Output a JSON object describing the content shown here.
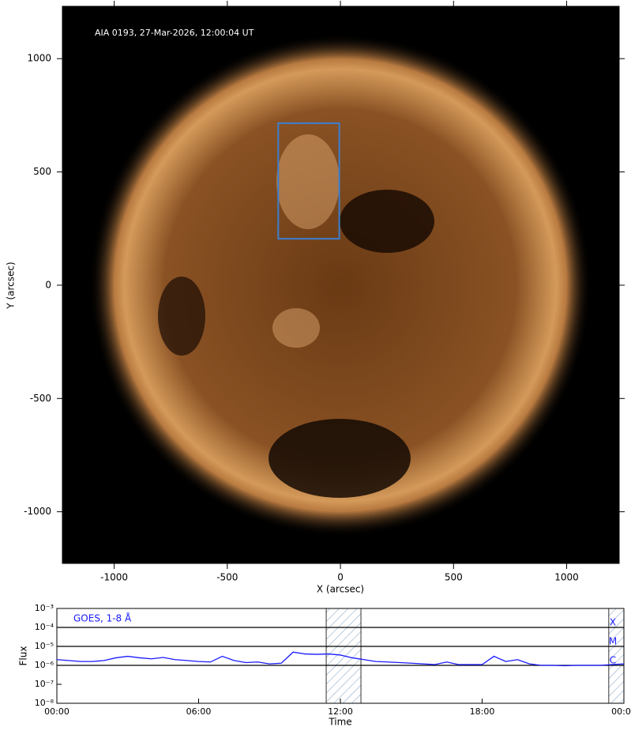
{
  "chart_data": [
    {
      "type": "image",
      "title": "AIA 0193, 27-Mar-2026, 12:00:04 UT",
      "xlabel": "X (arcsec)",
      "ylabel": "Y (arcsec)",
      "xlim": [
        -1229,
        1232
      ],
      "ylim": [
        -1228,
        1231
      ],
      "xticks": [
        -1000,
        -500,
        0,
        500,
        1000
      ],
      "yticks": [
        -1000,
        -500,
        0,
        500,
        1000
      ],
      "box": {
        "x": [
          -275,
          -5
        ],
        "y": [
          205,
          715
        ],
        "color": "#3a7fd0"
      }
    },
    {
      "type": "line",
      "title": "GOES, 1-8 Å",
      "xlabel": "Time",
      "ylabel": "Flux",
      "log_scale": true,
      "xlim": [
        0,
        24
      ],
      "ylim": [
        1e-08,
        0.001
      ],
      "xticks": [
        {
          "value": 0,
          "label": "00:00"
        },
        {
          "value": 6,
          "label": "06:00"
        },
        {
          "value": 12,
          "label": "12:00"
        },
        {
          "value": 18,
          "label": "18:00"
        },
        {
          "value": 24,
          "label": "00:00"
        }
      ],
      "yticks": [
        {
          "value": 1e-08,
          "label": "10⁻⁸"
        },
        {
          "value": 1e-07,
          "label": "10⁻⁷"
        },
        {
          "value": 1e-06,
          "label": "10⁻⁶"
        },
        {
          "value": 1e-05,
          "label": "10⁻⁵"
        },
        {
          "value": 0.0001,
          "label": "10⁻⁴"
        },
        {
          "value": 0.001,
          "label": "10⁻³"
        }
      ],
      "levels": [
        {
          "value": 0.0001,
          "label": "X"
        },
        {
          "value": 1e-05,
          "label": "M"
        },
        {
          "value": 1e-06,
          "label": "C"
        }
      ],
      "shaded": [
        [
          11.4,
          12.87
        ],
        [
          23.36,
          24
        ]
      ],
      "color": "#1a1aff",
      "x": [
        0,
        0.5,
        1,
        1.5,
        2,
        2.5,
        3,
        3.5,
        4,
        4.5,
        5,
        5.5,
        6,
        6.5,
        7,
        7.5,
        8,
        8.5,
        9,
        9.5,
        10,
        10.5,
        11,
        11.5,
        12,
        12.5,
        13,
        13.5,
        14,
        14.5,
        15,
        15.5,
        16,
        16.5,
        17,
        17.5,
        18,
        18.5,
        19,
        19.5,
        20,
        20.5,
        21,
        21.5,
        22,
        22.5,
        23,
        23.5,
        24
      ],
      "values": [
        2e-06,
        1.8e-06,
        1.6e-06,
        1.6e-06,
        1.8e-06,
        2.5e-06,
        3e-06,
        2.5e-06,
        2.2e-06,
        2.6e-06,
        2e-06,
        1.8e-06,
        1.6e-06,
        1.5e-06,
        3e-06,
        1.8e-06,
        1.4e-06,
        1.5e-06,
        1.2e-06,
        1.3e-06,
        5e-06,
        4e-06,
        3.8e-06,
        4e-06,
        3.5e-06,
        2.5e-06,
        2e-06,
        1.6e-06,
        1.5e-06,
        1.4e-06,
        1.3e-06,
        1.2e-06,
        1.1e-06,
        1.5e-06,
        1.1e-06,
        1.1e-06,
        1.1e-06,
        3e-06,
        1.6e-06,
        2e-06,
        1.2e-06,
        1e-06,
        1e-06,
        9.5e-07,
        1e-06,
        1e-06,
        1e-06,
        1.1e-06,
        1.2e-06
      ]
    }
  ]
}
